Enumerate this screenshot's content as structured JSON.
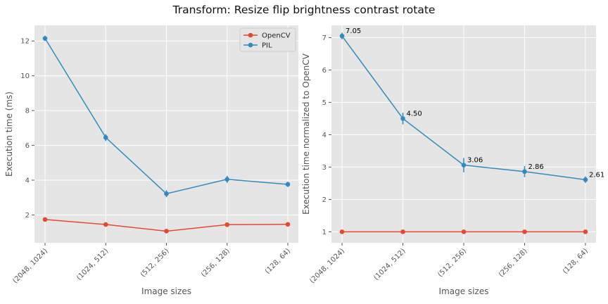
{
  "title": "Transform: Resize flip brightness contrast rotate",
  "colors": {
    "opencv": "#E24A33",
    "pil": "#348ABD",
    "panel_bg": "#E5E5E5",
    "grid": "#FFFFFF"
  },
  "chart_data": [
    {
      "type": "line",
      "title": "",
      "xlabel": "Image sizes",
      "ylabel": "Execution time (ms)",
      "categories": [
        "(2048, 1024)",
        "(1024, 512)",
        "(512, 256)",
        "(256, 128)",
        "(128, 64)"
      ],
      "ylim": [
        0.4,
        12.9
      ],
      "yticks": [
        2,
        4,
        6,
        8,
        10,
        12
      ],
      "grid": true,
      "legend": "top-right",
      "series": [
        {
          "name": "OpenCV",
          "values": [
            1.74,
            1.45,
            1.07,
            1.44,
            1.46
          ],
          "errors": [
            0.05,
            0.04,
            0.04,
            0.05,
            0.05
          ]
        },
        {
          "name": "PIL",
          "values": [
            12.15,
            6.45,
            3.22,
            4.05,
            3.76
          ],
          "errors": [
            0.15,
            0.2,
            0.2,
            0.2,
            0.15
          ]
        }
      ]
    },
    {
      "type": "line",
      "title": "",
      "xlabel": "Image sizes",
      "ylabel": "Execution time normalized to OpenCV",
      "categories": [
        "(2048, 1024)",
        "(1024, 512)",
        "(512, 256)",
        "(256, 128)",
        "(128, 64)"
      ],
      "ylim": [
        0.66,
        7.38
      ],
      "yticks": [
        1,
        2,
        3,
        4,
        5,
        6,
        7
      ],
      "grid": true,
      "series": [
        {
          "name": "OpenCV",
          "values": [
            1,
            1,
            1,
            1,
            1
          ],
          "errors": [
            0,
            0,
            0,
            0,
            0
          ]
        },
        {
          "name": "PIL",
          "values": [
            7.05,
            4.5,
            3.06,
            2.86,
            2.61
          ],
          "errors": [
            0.1,
            0.18,
            0.22,
            0.17,
            0.1
          ],
          "data_labels": [
            "7.05",
            "4.50",
            "3.06",
            "2.86",
            "2.61"
          ]
        }
      ]
    }
  ]
}
